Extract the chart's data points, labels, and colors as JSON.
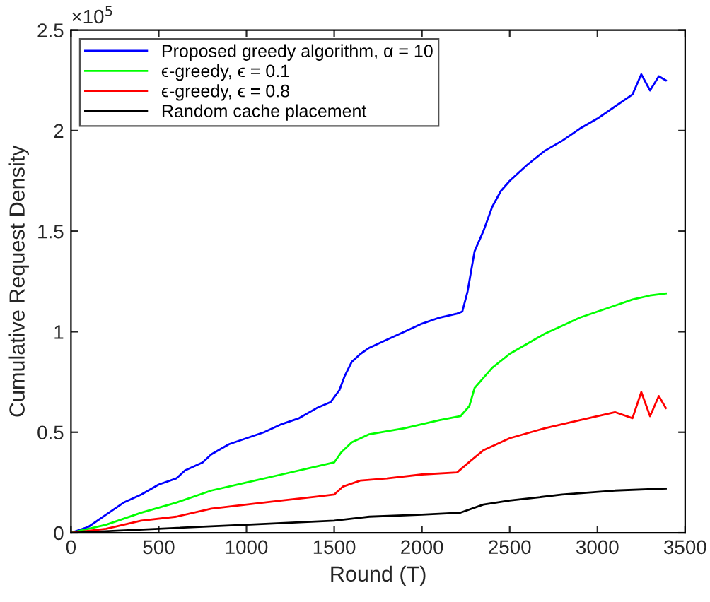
{
  "chart_data": {
    "type": "line",
    "xlabel": "Round (T)",
    "ylabel": "Cumulative Request Density",
    "annotations": [
      "×10$^{5}$"
    ],
    "xlim": [
      0,
      3500
    ],
    "xticks": [
      0,
      500,
      1000,
      1500,
      2000,
      2500,
      3000,
      3500
    ],
    "ylim": [
      0,
      2.5
    ],
    "yticks": [
      0,
      0.5,
      1,
      1.5,
      2,
      2.5
    ],
    "grid": false,
    "legend": "top left",
    "line_style": "solid",
    "marker": "none",
    "series": [
      {
        "name": "Proposed greedy algorithm, α = 10",
        "color": "#0000ff",
        "x": [
          0,
          100,
          200,
          300,
          400,
          500,
          600,
          650,
          750,
          800,
          900,
          1000,
          1100,
          1200,
          1300,
          1400,
          1480,
          1530,
          1560,
          1600,
          1650,
          1700,
          1800,
          1900,
          2000,
          2100,
          2200,
          2230,
          2260,
          2280,
          2300,
          2350,
          2400,
          2450,
          2500,
          2600,
          2700,
          2800,
          2900,
          3000,
          3100,
          3200,
          3250,
          3300,
          3350,
          3390
        ],
        "values": [
          0,
          0.03,
          0.09,
          0.15,
          0.19,
          0.24,
          0.27,
          0.31,
          0.35,
          0.39,
          0.44,
          0.47,
          0.5,
          0.54,
          0.57,
          0.62,
          0.65,
          0.71,
          0.78,
          0.85,
          0.89,
          0.92,
          0.96,
          1.0,
          1.04,
          1.07,
          1.09,
          1.1,
          1.2,
          1.3,
          1.4,
          1.5,
          1.62,
          1.7,
          1.75,
          1.83,
          1.9,
          1.95,
          2.01,
          2.06,
          2.12,
          2.18,
          2.28,
          2.2,
          2.27,
          2.25
        ]
      },
      {
        "name": "ϵ-greedy, ϵ = 0.1",
        "color": "#00ff00",
        "x": [
          0,
          200,
          400,
          600,
          800,
          1000,
          1200,
          1400,
          1500,
          1540,
          1600,
          1700,
          1900,
          2100,
          2220,
          2270,
          2300,
          2400,
          2500,
          2600,
          2700,
          2800,
          2900,
          3000,
          3100,
          3200,
          3300,
          3390
        ],
        "values": [
          0,
          0.04,
          0.1,
          0.15,
          0.21,
          0.25,
          0.29,
          0.33,
          0.35,
          0.4,
          0.45,
          0.49,
          0.52,
          0.56,
          0.58,
          0.63,
          0.72,
          0.82,
          0.89,
          0.94,
          0.99,
          1.03,
          1.07,
          1.1,
          1.13,
          1.16,
          1.18,
          1.19
        ]
      },
      {
        "name": "ϵ-greedy, ϵ = 0.8",
        "color": "#ff0000",
        "x": [
          0,
          200,
          400,
          600,
          800,
          1000,
          1200,
          1400,
          1500,
          1550,
          1650,
          1800,
          2000,
          2200,
          2280,
          2350,
          2500,
          2700,
          2900,
          3100,
          3200,
          3250,
          3300,
          3350,
          3390
        ],
        "values": [
          0,
          0.02,
          0.06,
          0.08,
          0.12,
          0.14,
          0.16,
          0.18,
          0.19,
          0.23,
          0.26,
          0.27,
          0.29,
          0.3,
          0.36,
          0.41,
          0.47,
          0.52,
          0.56,
          0.6,
          0.57,
          0.7,
          0.58,
          0.68,
          0.62
        ]
      },
      {
        "name": "Random cache placement",
        "color": "#000000",
        "x": [
          0,
          500,
          1000,
          1500,
          1700,
          2000,
          2220,
          2350,
          2500,
          2800,
          3100,
          3390
        ],
        "values": [
          0,
          0.02,
          0.04,
          0.06,
          0.08,
          0.09,
          0.1,
          0.14,
          0.16,
          0.19,
          0.21,
          0.22
        ]
      }
    ]
  }
}
